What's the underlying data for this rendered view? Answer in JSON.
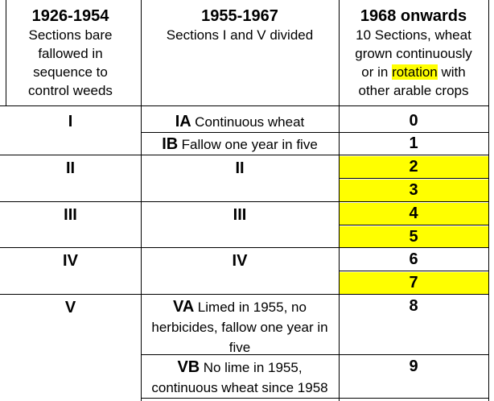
{
  "headers": {
    "col1": {
      "title": "1926-1954",
      "desc": "Sections bare fallowed in sequence to control weeds"
    },
    "col2": {
      "title": "1955-1967",
      "desc": "Sections I and V divided"
    },
    "col3": {
      "title": "1968 onwards",
      "desc_before": "10 Sections, wheat grown continuously or in ",
      "desc_highlight": "rotation",
      "desc_after": " with other arable crops"
    }
  },
  "col1_sections": [
    "I",
    "II",
    "III",
    "IV",
    "V"
  ],
  "col2_items": {
    "ia_label": "IA",
    "ia_text": "Continuous wheat",
    "ib_label": "IB",
    "ib_text": "Fallow one year in five",
    "ii": "II",
    "iii": "III",
    "iv": "IV",
    "va_label": "VA",
    "va_text": "Limed in 1955, no herbicides, fallow one year in five",
    "vb_label": "VB",
    "vb_text": "No lime in 1955, continuous wheat since 1958"
  },
  "col3_numbers": [
    "0",
    "1",
    "2",
    "3",
    "4",
    "5",
    "6",
    "7",
    "8",
    "9"
  ],
  "colors": {
    "highlight": "#ffff00",
    "border": "#000000",
    "background": "#ffffff"
  }
}
